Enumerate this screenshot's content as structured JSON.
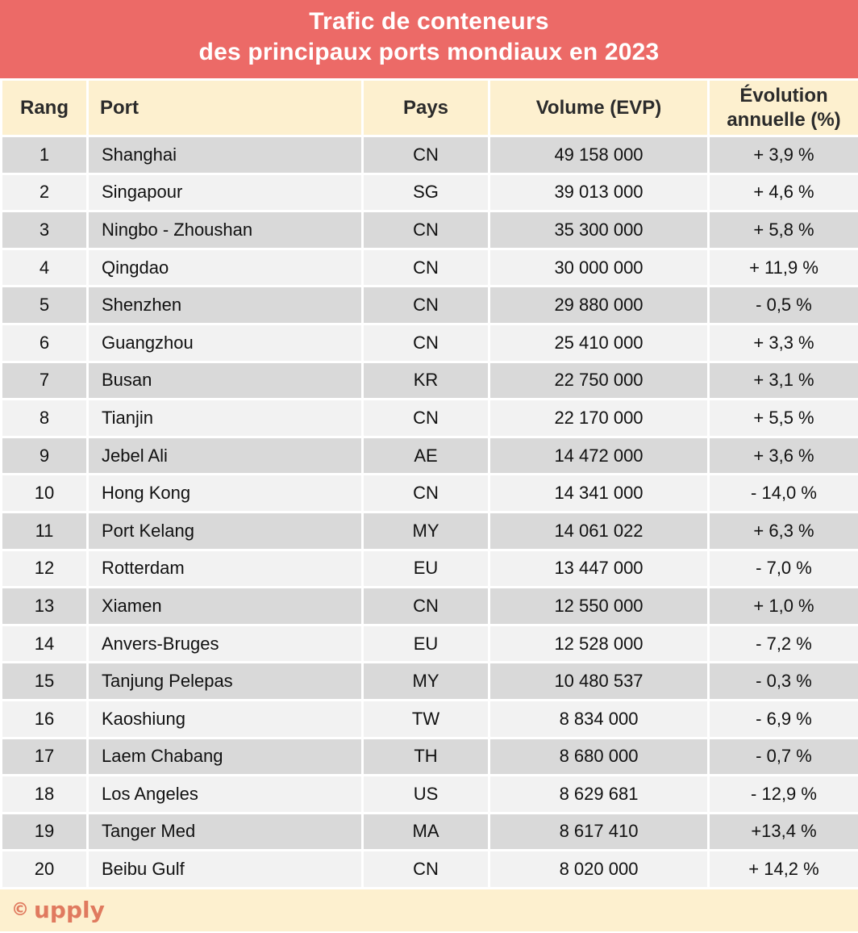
{
  "title": {
    "line1": "Trafic de conteneurs",
    "line2": "des principaux ports mondiaux en 2023"
  },
  "table": {
    "headers": {
      "rank": "Rang",
      "port": "Port",
      "country": "Pays",
      "volume": "Volume (EVP)",
      "evolution_line1": "Évolution",
      "evolution_line2": "annuelle (%)"
    },
    "rows": [
      {
        "rank": "1",
        "port": "Shanghai",
        "country": "CN",
        "volume": "49 158 000",
        "evolution": "+ 3,9 %"
      },
      {
        "rank": "2",
        "port": "Singapour",
        "country": "SG",
        "volume": "39 013 000",
        "evolution": "+ 4,6 %"
      },
      {
        "rank": "3",
        "port": "Ningbo - Zhoushan",
        "country": "CN",
        "volume": "35 300 000",
        "evolution": "+ 5,8 %"
      },
      {
        "rank": "4",
        "port": "Qingdao",
        "country": "CN",
        "volume": "30 000 000",
        "evolution": "+ 11,9 %"
      },
      {
        "rank": "5",
        "port": "Shenzhen",
        "country": "CN",
        "volume": "29 880 000",
        "evolution": "- 0,5 %"
      },
      {
        "rank": "6",
        "port": "Guangzhou",
        "country": "CN",
        "volume": "25 410 000",
        "evolution": "+ 3,3 %"
      },
      {
        "rank": "7",
        "port": "Busan",
        "country": "KR",
        "volume": "22 750 000",
        "evolution": "+ 3,1 %"
      },
      {
        "rank": "8",
        "port": "Tianjin",
        "country": "CN",
        "volume": "22 170 000",
        "evolution": "+ 5,5 %"
      },
      {
        "rank": "9",
        "port": "Jebel Ali",
        "country": "AE",
        "volume": "14 472 000",
        "evolution": "+ 3,6 %"
      },
      {
        "rank": "10",
        "port": "Hong Kong",
        "country": "CN",
        "volume": "14 341 000",
        "evolution": "- 14,0 %"
      },
      {
        "rank": "11",
        "port": "Port Kelang",
        "country": "MY",
        "volume": "14 061 022",
        "evolution": "+ 6,3 %"
      },
      {
        "rank": "12",
        "port": "Rotterdam",
        "country": "EU",
        "volume": "13 447 000",
        "evolution": "- 7,0 %"
      },
      {
        "rank": "13",
        "port": "Xiamen",
        "country": "CN",
        "volume": "12 550 000",
        "evolution": "+ 1,0 %"
      },
      {
        "rank": "14",
        "port": "Anvers-Bruges",
        "country": "EU",
        "volume": "12 528 000",
        "evolution": "- 7,2 %"
      },
      {
        "rank": "15",
        "port": "Tanjung Pelepas",
        "country": "MY",
        "volume": "10 480 537",
        "evolution": "- 0,3 %"
      },
      {
        "rank": "16",
        "port": "Kaoshiung",
        "country": "TW",
        "volume": "8 834 000",
        "evolution": "- 6,9 %"
      },
      {
        "rank": "17",
        "port": "Laem Chabang",
        "country": "TH",
        "volume": "8 680 000",
        "evolution": "- 0,7 %"
      },
      {
        "rank": "18",
        "port": "Los Angeles",
        "country": "US",
        "volume": "8 629 681",
        "evolution": "- 12,9 %"
      },
      {
        "rank": "19",
        "port": "Tanger Med",
        "country": "MA",
        "volume": "8 617 410",
        "evolution": "+13,4 %"
      },
      {
        "rank": "20",
        "port": "Beibu Gulf",
        "country": "CN",
        "volume": "8 020 000",
        "evolution": "+ 14,2 %"
      }
    ]
  },
  "footer": {
    "copyright_symbol": "©",
    "brand": "upply"
  },
  "colors": {
    "title_bg": "#ec6a67",
    "header_bg": "#fdf0cf",
    "row_dark": "#d9d9d9",
    "row_light": "#f2f2f2",
    "brand": "#e07a5f"
  },
  "chart_data": {
    "type": "table",
    "title": "Trafic de conteneurs des principaux ports mondiaux en 2023",
    "columns": [
      "Rang",
      "Port",
      "Pays",
      "Volume (EVP)",
      "Évolution annuelle (%)"
    ],
    "rows": [
      [
        1,
        "Shanghai",
        "CN",
        49158000,
        3.9
      ],
      [
        2,
        "Singapour",
        "SG",
        39013000,
        4.6
      ],
      [
        3,
        "Ningbo - Zhoushan",
        "CN",
        35300000,
        5.8
      ],
      [
        4,
        "Qingdao",
        "CN",
        30000000,
        11.9
      ],
      [
        5,
        "Shenzhen",
        "CN",
        29880000,
        -0.5
      ],
      [
        6,
        "Guangzhou",
        "CN",
        25410000,
        3.3
      ],
      [
        7,
        "Busan",
        "KR",
        22750000,
        3.1
      ],
      [
        8,
        "Tianjin",
        "CN",
        22170000,
        5.5
      ],
      [
        9,
        "Jebel Ali",
        "AE",
        14472000,
        3.6
      ],
      [
        10,
        "Hong Kong",
        "CN",
        14341000,
        -14.0
      ],
      [
        11,
        "Port Kelang",
        "MY",
        14061022,
        6.3
      ],
      [
        12,
        "Rotterdam",
        "EU",
        13447000,
        -7.0
      ],
      [
        13,
        "Xiamen",
        "CN",
        12550000,
        1.0
      ],
      [
        14,
        "Anvers-Bruges",
        "EU",
        12528000,
        -7.2
      ],
      [
        15,
        "Tanjung Pelepas",
        "MY",
        10480537,
        -0.3
      ],
      [
        16,
        "Kaoshiung",
        "TW",
        8834000,
        -6.9
      ],
      [
        17,
        "Laem Chabang",
        "TH",
        8680000,
        -0.7
      ],
      [
        18,
        "Los Angeles",
        "US",
        8629681,
        -12.9
      ],
      [
        19,
        "Tanger Med",
        "MA",
        8617410,
        13.4
      ],
      [
        20,
        "Beibu Gulf",
        "CN",
        8020000,
        14.2
      ]
    ],
    "source_credit": "© upply"
  }
}
